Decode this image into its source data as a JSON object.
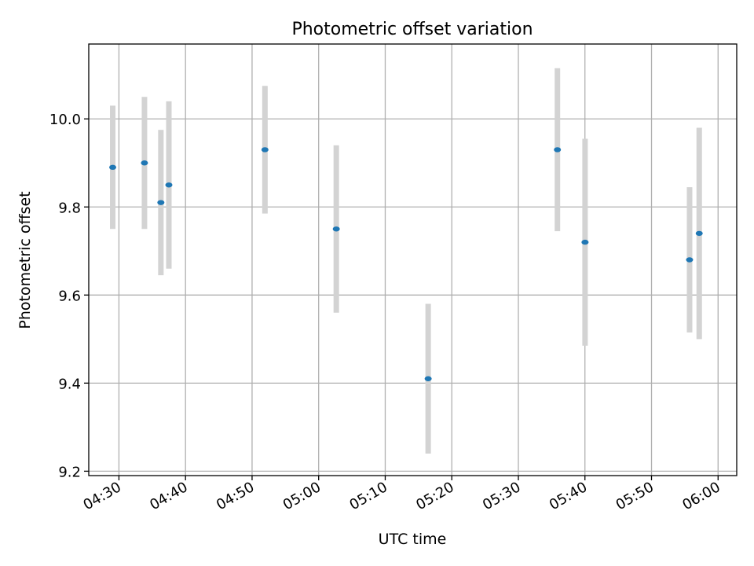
{
  "chart_data": {
    "type": "scatter",
    "title": "Photometric offset variation",
    "xlabel": "UTC time",
    "ylabel": "Photometric offset",
    "x_tick_labels": [
      "04:30",
      "04:40",
      "04:50",
      "05:00",
      "05:10",
      "05:20",
      "05:30",
      "05:40",
      "05:50",
      "06:00"
    ],
    "y_tick_labels": [
      "9.2",
      "9.4",
      "9.6",
      "9.8",
      "10.0"
    ],
    "x_ticks": [
      "04:30",
      "04:40",
      "04:50",
      "05:00",
      "05:10",
      "05:20",
      "05:30",
      "05:40",
      "05:50",
      "06:00"
    ],
    "y_ticks": [
      9.2,
      9.4,
      9.6,
      9.8,
      10.0
    ],
    "xlim": [
      "04:25:28",
      "06:02:48"
    ],
    "ylim": [
      9.19,
      10.17
    ],
    "grid": true,
    "series": [
      {
        "x": [
          "04:29:04",
          "04:33:50",
          "04:36:18",
          "04:37:30",
          "04:51:56",
          "05:02:39",
          "05:16:27",
          "05:35:52",
          "05:40:01",
          "05:55:43",
          "05:57:10"
        ],
        "y": [
          9.89,
          9.9,
          9.81,
          9.85,
          9.93,
          9.75,
          9.41,
          9.93,
          9.72,
          9.68,
          9.74
        ],
        "yerr": [
          0.14,
          0.15,
          0.165,
          0.19,
          0.145,
          0.19,
          0.17,
          0.185,
          0.235,
          0.165,
          0.24
        ]
      }
    ],
    "colors": {
      "points": "#1f77b4",
      "error_bars": "#d3d3d3",
      "grid": "#b0b0b0"
    }
  }
}
